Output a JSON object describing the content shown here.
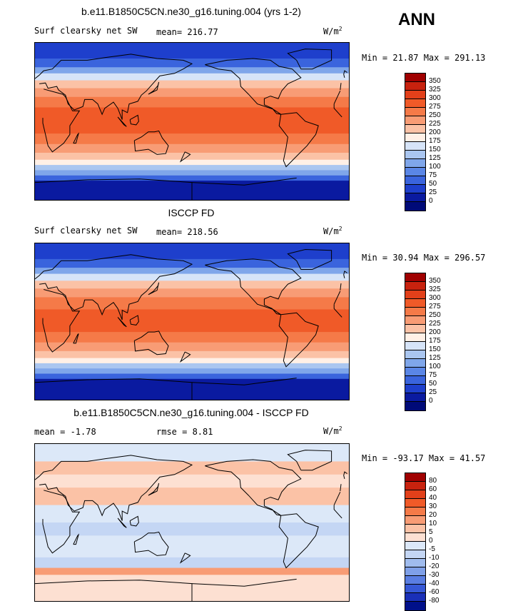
{
  "season": "ANN",
  "panels": [
    {
      "title": "b.e11.B1850C5CN.ne30_g16.tuning.004 (yrs 1-2)",
      "left_text": "Surf clearsky net SW",
      "center_text": "mean= 216.77",
      "units": "W/m",
      "units_sup": "2",
      "minmax": "Min =  21.87 Max = 291.13",
      "colorbar": {
        "labels": [
          "350",
          "325",
          "300",
          "275",
          "250",
          "225",
          "200",
          "175",
          "150",
          "125",
          "100",
          "75",
          "50",
          "25",
          "0"
        ],
        "colors": [
          "#a00000",
          "#c8220e",
          "#e2401a",
          "#f05a28",
          "#f57a48",
          "#f89c75",
          "#fbc2a6",
          "#fff0e6",
          "#d6e4f8",
          "#aac6f0",
          "#7fa6ea",
          "#5a86e6",
          "#3a64dd",
          "#1e3fcc",
          "#0a1aa0",
          "#000a78"
        ]
      },
      "map": {
        "bands": [
          {
            "lat": 90,
            "color": "#1e3fcc"
          },
          {
            "lat": 72,
            "color": "#3a64dd"
          },
          {
            "lat": 62,
            "color": "#7fa6ea"
          },
          {
            "lat": 55,
            "color": "#d6e4f8"
          },
          {
            "lat": 47,
            "color": "#fbc2a6"
          },
          {
            "lat": 38,
            "color": "#f89c75"
          },
          {
            "lat": 28,
            "color": "#f57a48"
          },
          {
            "lat": 16,
            "color": "#f05a28"
          },
          {
            "lat": -14,
            "color": "#f57a48"
          },
          {
            "lat": -26,
            "color": "#f89c75"
          },
          {
            "lat": -36,
            "color": "#fbc2a6"
          },
          {
            "lat": -44,
            "color": "#fff0e6"
          },
          {
            "lat": -50,
            "color": "#aac6f0"
          },
          {
            "lat": -56,
            "color": "#7fa6ea"
          },
          {
            "lat": -62,
            "color": "#3a64dd"
          },
          {
            "lat": -68,
            "color": "#0a1aa0"
          },
          {
            "lat": -90,
            "color": "#0a1aa0"
          }
        ]
      }
    },
    {
      "title": "ISCCP FD",
      "left_text": "Surf clearsky net SW",
      "center_text": "mean= 218.56",
      "units": "W/m",
      "units_sup": "2",
      "minmax": "Min =  30.94 Max = 296.57",
      "colorbar": {
        "labels": [
          "350",
          "325",
          "300",
          "275",
          "250",
          "225",
          "200",
          "175",
          "150",
          "125",
          "100",
          "75",
          "50",
          "25",
          "0"
        ],
        "colors": [
          "#a00000",
          "#c8220e",
          "#e2401a",
          "#f05a28",
          "#f57a48",
          "#f89c75",
          "#fbc2a6",
          "#fff0e6",
          "#d6e4f8",
          "#aac6f0",
          "#7fa6ea",
          "#5a86e6",
          "#3a64dd",
          "#1e3fcc",
          "#0a1aa0",
          "#000a78"
        ]
      },
      "map": {
        "bands": [
          {
            "lat": 90,
            "color": "#1e3fcc"
          },
          {
            "lat": 72,
            "color": "#3a64dd"
          },
          {
            "lat": 62,
            "color": "#7fa6ea"
          },
          {
            "lat": 55,
            "color": "#d6e4f8"
          },
          {
            "lat": 47,
            "color": "#fbc2a6"
          },
          {
            "lat": 38,
            "color": "#f89c75"
          },
          {
            "lat": 28,
            "color": "#f57a48"
          },
          {
            "lat": 14,
            "color": "#f05a28"
          },
          {
            "lat": -12,
            "color": "#f57a48"
          },
          {
            "lat": -24,
            "color": "#f89c75"
          },
          {
            "lat": -34,
            "color": "#fbc2a6"
          },
          {
            "lat": -42,
            "color": "#fff0e6"
          },
          {
            "lat": -48,
            "color": "#aac6f0"
          },
          {
            "lat": -54,
            "color": "#7fa6ea"
          },
          {
            "lat": -60,
            "color": "#3a64dd"
          },
          {
            "lat": -66,
            "color": "#0a1aa0"
          },
          {
            "lat": -90,
            "color": "#0a1aa0"
          }
        ]
      }
    },
    {
      "title": "b.e11.B1850C5CN.ne30_g16.tuning.004 - ISCCP FD",
      "left_text": "mean =   -1.78",
      "center_text": "rmse =    8.81",
      "units": "W/m",
      "units_sup": "2",
      "minmax": "Min = -93.17 Max =  41.57",
      "colorbar": {
        "labels": [
          "80",
          "60",
          "40",
          "30",
          "20",
          "10",
          "5",
          "0",
          "-5",
          "-10",
          "-20",
          "-30",
          "-40",
          "-60",
          "-80"
        ],
        "colors": [
          "#a00000",
          "#c8220e",
          "#e2401a",
          "#f05a28",
          "#f57a48",
          "#f89c75",
          "#fbc2a6",
          "#fde0d2",
          "#dce8f8",
          "#c4d6f4",
          "#a0bcee",
          "#7fa0e8",
          "#5a7ee2",
          "#3658d6",
          "#1a30b8",
          "#00108a"
        ]
      },
      "map": {
        "bands": [
          {
            "lat": 90,
            "color": "#dce8f8"
          },
          {
            "lat": 70,
            "color": "#fbc2a6"
          },
          {
            "lat": 55,
            "color": "#fde0d2"
          },
          {
            "lat": 40,
            "color": "#fbc2a6"
          },
          {
            "lat": 20,
            "color": "#dce8f8"
          },
          {
            "lat": 0,
            "color": "#c4d6f4"
          },
          {
            "lat": -15,
            "color": "#dce8f8"
          },
          {
            "lat": -40,
            "color": "#c4d6f4"
          },
          {
            "lat": -52,
            "color": "#f89c75"
          },
          {
            "lat": -60,
            "color": "#fde0d2"
          },
          {
            "lat": -70,
            "color": "#fde0d2"
          },
          {
            "lat": -90,
            "color": "#fde0d2"
          }
        ]
      }
    }
  ],
  "icons": {
    "coastline": "coastline-outline"
  }
}
